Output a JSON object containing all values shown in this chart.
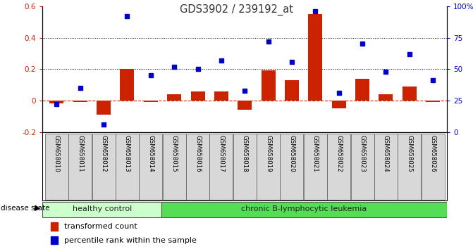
{
  "title": "GDS3902 / 239192_at",
  "samples": [
    "GSM658010",
    "GSM658011",
    "GSM658012",
    "GSM658013",
    "GSM658014",
    "GSM658015",
    "GSM658016",
    "GSM658017",
    "GSM658018",
    "GSM658019",
    "GSM658020",
    "GSM658021",
    "GSM658022",
    "GSM658023",
    "GSM658024",
    "GSM658025",
    "GSM658026"
  ],
  "bar_values": [
    -0.02,
    -0.01,
    -0.09,
    0.2,
    -0.01,
    0.04,
    0.06,
    0.06,
    -0.06,
    0.19,
    0.13,
    0.55,
    -0.05,
    0.14,
    0.04,
    0.09,
    -0.01
  ],
  "dot_values_pct": [
    22,
    35,
    6,
    92,
    45,
    52,
    50,
    57,
    33,
    72,
    56,
    96,
    31,
    70,
    48,
    62,
    41
  ],
  "bar_color": "#cc2200",
  "dot_color": "#0000cc",
  "healthy_count": 5,
  "disease_state_label": "disease state",
  "healthy_label": "healthy control",
  "disease_label": "chronic B-lymphocytic leukemia",
  "healthy_bg": "#ccffcc",
  "disease_bg": "#55dd55",
  "legend_bar": "transformed count",
  "legend_dot": "percentile rank within the sample",
  "ylim_left": [
    -0.2,
    0.6
  ],
  "ylim_right": [
    0,
    100
  ],
  "yticks_left": [
    -0.2,
    0.0,
    0.2,
    0.4,
    0.6
  ],
  "yticks_right": [
    0,
    25,
    50,
    75,
    100
  ],
  "hlines_dotted": [
    0.2,
    0.4
  ],
  "bg_color": "#ffffff",
  "title_color": "#333333",
  "box_color": "#d8d8d8"
}
